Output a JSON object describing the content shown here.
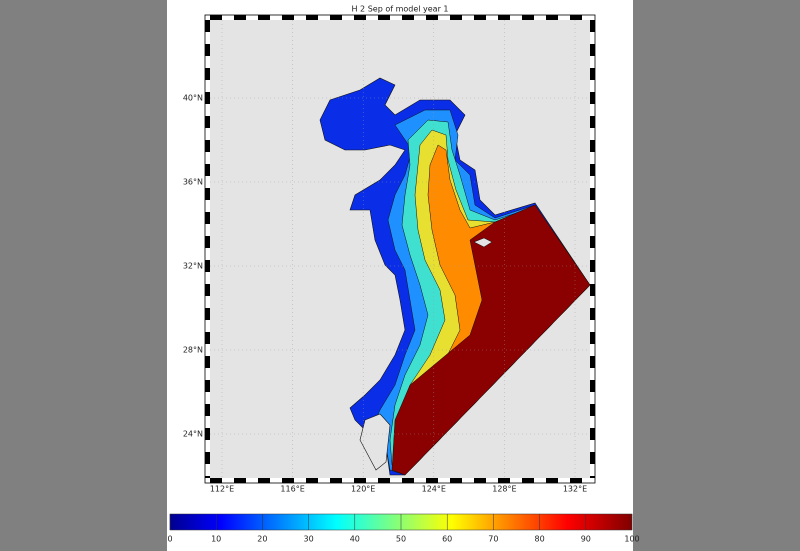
{
  "map": {
    "title": "H 2 Sep of model year 1",
    "lat_ticks": [
      {
        "value": 40,
        "label": "40°N"
      },
      {
        "value": 36,
        "label": "36°N"
      },
      {
        "value": 32,
        "label": "32°N"
      },
      {
        "value": 28,
        "label": "28°N"
      },
      {
        "value": 24,
        "label": "24°N"
      }
    ],
    "lon_ticks": [
      {
        "value": 112,
        "label": "112°E"
      },
      {
        "value": 116,
        "label": "116°E"
      },
      {
        "value": 120,
        "label": "120°E"
      },
      {
        "value": 124,
        "label": "124°E"
      },
      {
        "value": 128,
        "label": "128°E"
      },
      {
        "value": 132,
        "label": "132°E"
      }
    ],
    "colorbar": {
      "range": [
        0,
        100
      ],
      "ticks": [
        0,
        10,
        20,
        30,
        40,
        50,
        60,
        70,
        80,
        90,
        100
      ]
    }
  }
}
